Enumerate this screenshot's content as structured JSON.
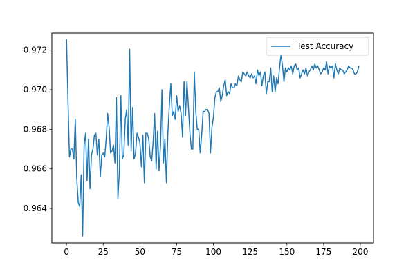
{
  "chart_data": {
    "type": "line",
    "title": "",
    "xlabel": "",
    "ylabel": "",
    "xlim": [
      -9.95,
      208.95
    ],
    "ylim": [
      0.96226,
      0.97286
    ],
    "xticks": [
      0,
      25,
      50,
      75,
      100,
      125,
      150,
      175,
      200
    ],
    "yticks": [
      0.964,
      0.966,
      0.968,
      0.97,
      0.972
    ],
    "xtick_labels": [
      "0",
      "25",
      "50",
      "75",
      "100",
      "125",
      "150",
      "175",
      "200"
    ],
    "ytick_labels": [
      "0.964",
      "0.966",
      "0.968",
      "0.970",
      "0.972"
    ],
    "grid": false,
    "legend_position": "upper right",
    "series": [
      {
        "name": "Test Accuracy",
        "color": "#1f77b4",
        "x": [
          0,
          1,
          2,
          3,
          4,
          5,
          6,
          7,
          8,
          9,
          10,
          11,
          12,
          13,
          14,
          15,
          16,
          17,
          18,
          19,
          20,
          21,
          22,
          23,
          24,
          25,
          26,
          27,
          28,
          29,
          30,
          31,
          32,
          33,
          34,
          35,
          36,
          37,
          38,
          39,
          40,
          41,
          42,
          43,
          44,
          45,
          46,
          47,
          48,
          49,
          50,
          51,
          52,
          53,
          54,
          55,
          56,
          57,
          58,
          59,
          60,
          61,
          62,
          63,
          64,
          65,
          66,
          67,
          68,
          69,
          70,
          71,
          72,
          73,
          74,
          75,
          76,
          77,
          78,
          79,
          80,
          81,
          82,
          83,
          84,
          85,
          86,
          87,
          88,
          89,
          90,
          91,
          92,
          93,
          94,
          95,
          96,
          97,
          98,
          99,
          100,
          101,
          102,
          103,
          104,
          105,
          106,
          107,
          108,
          109,
          110,
          111,
          112,
          113,
          114,
          115,
          116,
          117,
          118,
          119,
          120,
          121,
          122,
          123,
          124,
          125,
          126,
          127,
          128,
          129,
          130,
          131,
          132,
          133,
          134,
          135,
          136,
          137,
          138,
          139,
          140,
          141,
          142,
          143,
          144,
          145,
          146,
          147,
          148,
          149,
          150,
          151,
          152,
          153,
          154,
          155,
          156,
          157,
          158,
          159,
          160,
          161,
          162,
          163,
          164,
          165,
          166,
          167,
          168,
          169,
          170,
          171,
          172,
          173,
          174,
          175,
          176,
          177,
          178,
          179,
          180,
          181,
          182,
          183,
          184,
          185,
          186,
          187,
          188,
          189,
          190,
          191,
          192,
          193,
          194,
          195,
          196,
          197,
          198,
          199
        ],
        "y": [
          0.97255,
          0.9695,
          0.9666,
          0.967,
          0.967,
          0.9665,
          0.9685,
          0.9655,
          0.9643,
          0.9641,
          0.9657,
          0.9626,
          0.9672,
          0.9678,
          0.9654,
          0.9675,
          0.965,
          0.9667,
          0.967,
          0.9677,
          0.9678,
          0.9667,
          0.9675,
          0.9656,
          0.9667,
          0.9668,
          0.9666,
          0.9675,
          0.9688,
          0.9681,
          0.9668,
          0.9669,
          0.9672,
          0.9663,
          0.9696,
          0.9645,
          0.9659,
          0.9697,
          0.9665,
          0.9667,
          0.9685,
          0.969,
          0.9672,
          0.97205,
          0.9669,
          0.9691,
          0.9665,
          0.9668,
          0.9678,
          0.9676,
          0.9673,
          0.9661,
          0.9677,
          0.9653,
          0.9678,
          0.9678,
          0.9675,
          0.9666,
          0.9664,
          0.9674,
          0.9688,
          0.966,
          0.9679,
          0.9659,
          0.9672,
          0.97,
          0.9663,
          0.9675,
          0.9653,
          0.9678,
          0.9692,
          0.9703,
          0.9687,
          0.9689,
          0.9685,
          0.9697,
          0.9689,
          0.9692,
          0.9688,
          0.9676,
          0.9704,
          0.9687,
          0.9704,
          0.9691,
          0.9678,
          0.967,
          0.967,
          0.9709,
          0.9689,
          0.968,
          0.968,
          0.9668,
          0.9677,
          0.9689,
          0.9689,
          0.969,
          0.969,
          0.9688,
          0.9668,
          0.9681,
          0.9686,
          0.9696,
          0.9699,
          0.9699,
          0.9701,
          0.9694,
          0.9697,
          0.9702,
          0.9705,
          0.9697,
          0.9699,
          0.9698,
          0.9703,
          0.9701,
          0.9701,
          0.9703,
          0.9702,
          0.9707,
          0.9705,
          0.9704,
          0.9709,
          0.9708,
          0.9707,
          0.9709,
          0.9707,
          0.9706,
          0.9708,
          0.9706,
          0.9707,
          0.9703,
          0.971,
          0.9707,
          0.9709,
          0.9702,
          0.9707,
          0.9709,
          0.9698,
          0.9704,
          0.9704,
          0.9711,
          0.9699,
          0.9707,
          0.9699,
          0.9706,
          0.9703,
          0.9711,
          0.9718,
          0.9712,
          0.9704,
          0.9711,
          0.9709,
          0.9711,
          0.971,
          0.9712,
          0.9708,
          0.9712,
          0.9713,
          0.971,
          0.9711,
          0.9706,
          0.9708,
          0.971,
          0.9708,
          0.9711,
          0.9707,
          0.9709,
          0.971,
          0.9712,
          0.971,
          0.9713,
          0.9711,
          0.9712,
          0.971,
          0.9708,
          0.9709,
          0.9711,
          0.971,
          0.9714,
          0.9708,
          0.9712,
          0.9711,
          0.9712,
          0.9706,
          0.9713,
          0.971,
          0.9708,
          0.9711,
          0.971,
          0.971,
          0.9708,
          0.9709,
          0.971,
          0.9712,
          0.9711,
          0.9711,
          0.971,
          0.9708,
          0.9708,
          0.9709,
          0.9712
        ]
      }
    ]
  }
}
